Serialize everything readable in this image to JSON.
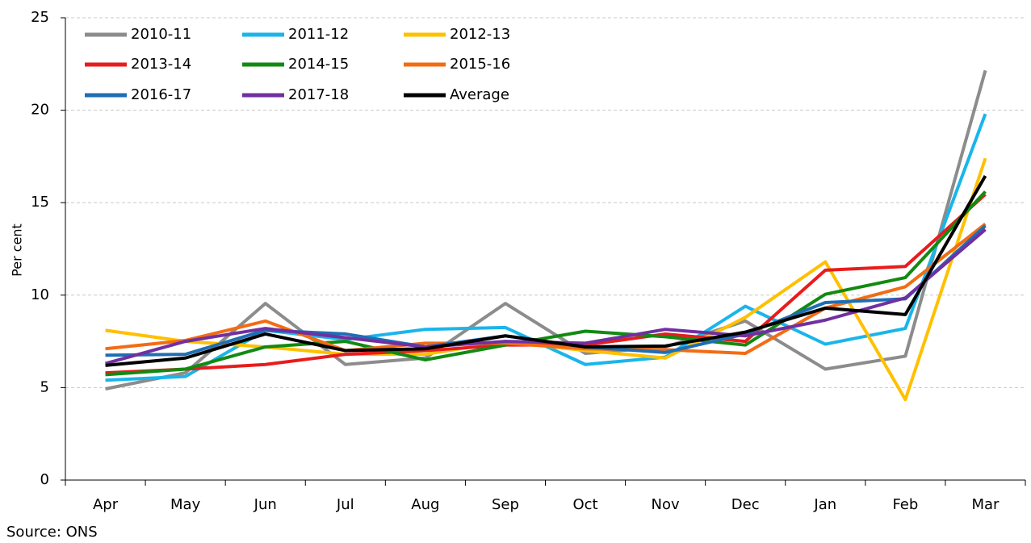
{
  "chart_data": {
    "type": "line",
    "y_label": "Per cent",
    "source": "Source: ONS",
    "categories": [
      "Apr",
      "May",
      "Jun",
      "Jul",
      "Aug",
      "Sep",
      "Oct",
      "Nov",
      "Dec",
      "Jan",
      "Feb",
      "Mar"
    ],
    "ylim": [
      0,
      25
    ],
    "yticks": [
      0,
      5,
      10,
      15,
      20,
      25
    ],
    "grid": true,
    "legend": "top-left",
    "series": [
      {
        "name": "2010-11",
        "color": "#8c8c8c",
        "values": [
          4.93,
          5.8,
          9.55,
          6.25,
          6.6,
          9.55,
          6.85,
          7.2,
          8.6,
          6.0,
          6.7,
          22.15
        ]
      },
      {
        "name": "2011-12",
        "color": "#1ab5ea",
        "values": [
          5.4,
          5.6,
          8.1,
          7.6,
          8.15,
          8.25,
          6.25,
          6.65,
          9.4,
          7.35,
          8.2,
          19.8
        ]
      },
      {
        "name": "2012-13",
        "color": "#ffc000",
        "values": [
          8.1,
          7.5,
          7.2,
          6.8,
          6.8,
          7.5,
          7.0,
          6.6,
          8.8,
          11.8,
          4.35,
          17.4
        ]
      },
      {
        "name": "2013-14",
        "color": "#e81c1c",
        "values": [
          5.8,
          6.0,
          6.25,
          6.8,
          7.0,
          7.3,
          7.3,
          7.9,
          7.5,
          11.35,
          11.55,
          15.45
        ]
      },
      {
        "name": "2014-15",
        "color": "#128a12",
        "values": [
          5.7,
          6.0,
          7.2,
          7.5,
          6.5,
          7.3,
          8.05,
          7.75,
          7.3,
          10.05,
          10.95,
          15.6
        ]
      },
      {
        "name": "2015-16",
        "color": "#f26c14",
        "values": [
          7.1,
          7.55,
          8.6,
          7.0,
          7.4,
          7.4,
          7.1,
          7.05,
          6.85,
          9.3,
          10.45,
          13.85
        ]
      },
      {
        "name": "2016-17",
        "color": "#1f6eb4",
        "values": [
          6.75,
          6.8,
          8.1,
          7.9,
          7.2,
          7.8,
          7.2,
          6.9,
          7.9,
          9.6,
          9.8,
          13.75
        ]
      },
      {
        "name": "2017-18",
        "color": "#7030a0",
        "values": [
          6.3,
          7.5,
          8.2,
          7.7,
          7.2,
          7.5,
          7.4,
          8.15,
          7.8,
          8.65,
          9.85,
          13.55
        ]
      },
      {
        "name": "Average",
        "color": "#000000",
        "values": [
          6.2,
          6.6,
          7.9,
          7.0,
          7.1,
          7.8,
          7.2,
          7.25,
          8.0,
          9.3,
          8.95,
          16.45
        ]
      }
    ]
  }
}
